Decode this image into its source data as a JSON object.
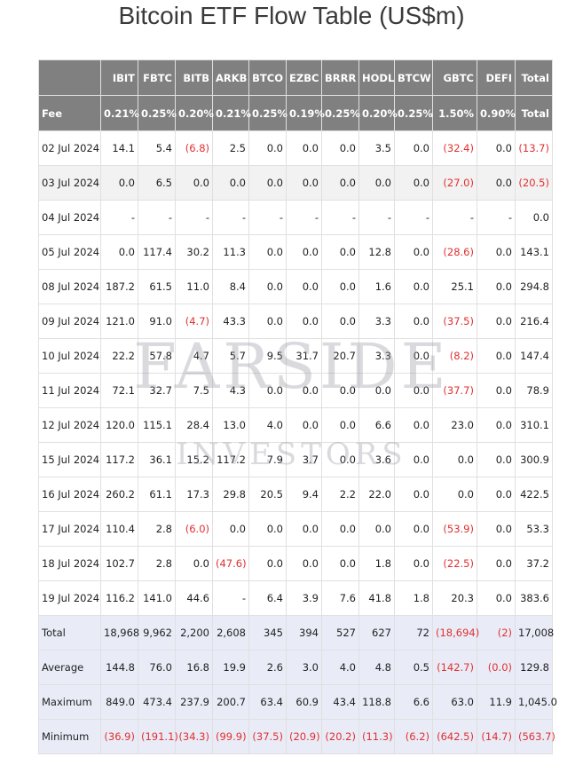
{
  "header": {
    "title": "Bitcoin ETF Flow Table (US$m)"
  },
  "watermark": {
    "line1": "FARSIDE",
    "line2": "INVESTORS"
  },
  "table": {
    "columns": [
      "IBIT",
      "FBTC",
      "BITB",
      "ARKB",
      "BTCO",
      "EZBC",
      "BRRR",
      "HODL",
      "BTCW",
      "GBTC",
      "DEFI",
      "Total"
    ],
    "fee_label": "Fee",
    "fees": [
      "0.21%",
      "0.25%",
      "0.20%",
      "0.21%",
      "0.25%",
      "0.19%",
      "0.25%",
      "0.20%",
      "0.25%",
      "1.50%",
      "0.90%",
      "Total"
    ],
    "rows": [
      [
        "02 Jul 2024",
        "14.1",
        "5.4",
        "(6.8)",
        "2.5",
        "0.0",
        "0.0",
        "0.0",
        "3.5",
        "0.0",
        "(32.4)",
        "0.0",
        "(13.7)"
      ],
      [
        "03 Jul 2024",
        "0.0",
        "6.5",
        "0.0",
        "0.0",
        "0.0",
        "0.0",
        "0.0",
        "0.0",
        "0.0",
        "(27.0)",
        "0.0",
        "(20.5)"
      ],
      [
        "04 Jul 2024",
        "-",
        "-",
        "-",
        "-",
        "-",
        "-",
        "-",
        "-",
        "-",
        "-",
        "-",
        "0.0"
      ],
      [
        "05 Jul 2024",
        "0.0",
        "117.4",
        "30.2",
        "11.3",
        "0.0",
        "0.0",
        "0.0",
        "12.8",
        "0.0",
        "(28.6)",
        "0.0",
        "143.1"
      ],
      [
        "08 Jul 2024",
        "187.2",
        "61.5",
        "11.0",
        "8.4",
        "0.0",
        "0.0",
        "0.0",
        "1.6",
        "0.0",
        "25.1",
        "0.0",
        "294.8"
      ],
      [
        "09 Jul 2024",
        "121.0",
        "91.0",
        "(4.7)",
        "43.3",
        "0.0",
        "0.0",
        "0.0",
        "3.3",
        "0.0",
        "(37.5)",
        "0.0",
        "216.4"
      ],
      [
        "10 Jul 2024",
        "22.2",
        "57.8",
        "4.7",
        "5.7",
        "9.5",
        "31.7",
        "20.7",
        "3.3",
        "0.0",
        "(8.2)",
        "0.0",
        "147.4"
      ],
      [
        "11 Jul 2024",
        "72.1",
        "32.7",
        "7.5",
        "4.3",
        "0.0",
        "0.0",
        "0.0",
        "0.0",
        "0.0",
        "(37.7)",
        "0.0",
        "78.9"
      ],
      [
        "12 Jul 2024",
        "120.0",
        "115.1",
        "28.4",
        "13.0",
        "4.0",
        "0.0",
        "0.0",
        "6.6",
        "0.0",
        "23.0",
        "0.0",
        "310.1"
      ],
      [
        "15 Jul 2024",
        "117.2",
        "36.1",
        "15.2",
        "117.2",
        "7.9",
        "3.7",
        "0.0",
        "3.6",
        "0.0",
        "0.0",
        "0.0",
        "300.9"
      ],
      [
        "16 Jul 2024",
        "260.2",
        "61.1",
        "17.3",
        "29.8",
        "20.5",
        "9.4",
        "2.2",
        "22.0",
        "0.0",
        "0.0",
        "0.0",
        "422.5"
      ],
      [
        "17 Jul 2024",
        "110.4",
        "2.8",
        "(6.0)",
        "0.0",
        "0.0",
        "0.0",
        "0.0",
        "0.0",
        "0.0",
        "(53.9)",
        "0.0",
        "53.3"
      ],
      [
        "18 Jul 2024",
        "102.7",
        "2.8",
        "0.0",
        "(47.6)",
        "0.0",
        "0.0",
        "0.0",
        "1.8",
        "0.0",
        "(22.5)",
        "0.0",
        "37.2"
      ],
      [
        "19 Jul 2024",
        "116.2",
        "141.0",
        "44.6",
        "-",
        "6.4",
        "3.9",
        "7.6",
        "41.8",
        "1.8",
        "20.3",
        "0.0",
        "383.6"
      ]
    ],
    "summary": [
      [
        "Total",
        "18,968",
        "9,962",
        "2,200",
        "2,608",
        "345",
        "394",
        "527",
        "627",
        "72",
        "(18,694)",
        "(2)",
        "17,008"
      ],
      [
        "Average",
        "144.8",
        "76.0",
        "16.8",
        "19.9",
        "2.6",
        "3.0",
        "4.0",
        "4.8",
        "0.5",
        "(142.7)",
        "(0.0)",
        "129.8"
      ],
      [
        "Maximum",
        "849.0",
        "473.4",
        "237.9",
        "200.7",
        "63.4",
        "60.9",
        "43.4",
        "118.8",
        "6.6",
        "63.0",
        "11.9",
        "1,045.0"
      ],
      [
        "Minimum",
        "(36.9)",
        "(191.1)",
        "(34.3)",
        "(99.9)",
        "(37.5)",
        "(20.9)",
        "(20.2)",
        "(11.3)",
        "(6.2)",
        "(642.5)",
        "(14.7)",
        "(563.7)"
      ]
    ]
  }
}
